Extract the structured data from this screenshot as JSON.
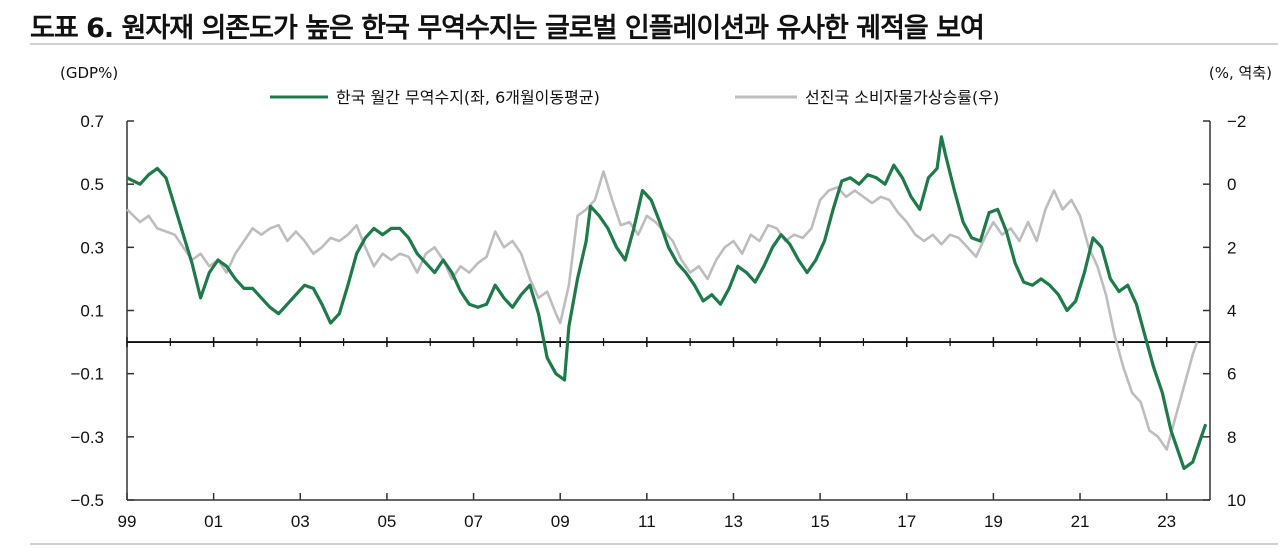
{
  "title": "도표 6. 원자재 의존도가 높은 한국 무역수지는 글로벌 인플레이션과 유사한 궤적을 보여",
  "chart_data": {
    "type": "line",
    "left_unit": "(GDP%)",
    "right_unit": "(%, 역축)",
    "x_ticks": [
      "99",
      "01",
      "03",
      "05",
      "07",
      "09",
      "11",
      "13",
      "15",
      "17",
      "19",
      "21",
      "23"
    ],
    "y_left": {
      "range": [
        -0.5,
        0.7
      ],
      "ticks": [
        "0.7",
        "0.5",
        "0.3",
        "0.1",
        "−0.1",
        "−0.3",
        "−0.5"
      ]
    },
    "y_right": {
      "range": [
        -2,
        10
      ],
      "inverted": true,
      "ticks": [
        "−2",
        "0",
        "2",
        "4",
        "6",
        "8",
        "10"
      ]
    },
    "legend_position": "top-center",
    "grid": false,
    "colors": {
      "korea": "#1f7a4a",
      "advanced": "#bdbdbd",
      "frame": "#333333"
    },
    "series": [
      {
        "name": "한국 월간 무역수지(좌, 6개월이동평균)",
        "axis": "left",
        "points": [
          [
            1999.0,
            0.52
          ],
          [
            1999.3,
            0.5
          ],
          [
            1999.5,
            0.53
          ],
          [
            1999.7,
            0.55
          ],
          [
            1999.9,
            0.52
          ],
          [
            2000.1,
            0.43
          ],
          [
            2000.3,
            0.34
          ],
          [
            2000.5,
            0.25
          ],
          [
            2000.7,
            0.14
          ],
          [
            2000.9,
            0.22
          ],
          [
            2001.1,
            0.26
          ],
          [
            2001.3,
            0.24
          ],
          [
            2001.5,
            0.2
          ],
          [
            2001.7,
            0.17
          ],
          [
            2001.9,
            0.17
          ],
          [
            2002.1,
            0.14
          ],
          [
            2002.3,
            0.11
          ],
          [
            2002.5,
            0.09
          ],
          [
            2002.7,
            0.12
          ],
          [
            2002.9,
            0.15
          ],
          [
            2003.1,
            0.18
          ],
          [
            2003.3,
            0.17
          ],
          [
            2003.5,
            0.12
          ],
          [
            2003.7,
            0.06
          ],
          [
            2003.9,
            0.09
          ],
          [
            2004.1,
            0.18
          ],
          [
            2004.3,
            0.28
          ],
          [
            2004.5,
            0.33
          ],
          [
            2004.7,
            0.36
          ],
          [
            2004.9,
            0.34
          ],
          [
            2005.1,
            0.36
          ],
          [
            2005.3,
            0.36
          ],
          [
            2005.5,
            0.33
          ],
          [
            2005.7,
            0.28
          ],
          [
            2005.9,
            0.25
          ],
          [
            2006.1,
            0.22
          ],
          [
            2006.3,
            0.26
          ],
          [
            2006.5,
            0.22
          ],
          [
            2006.7,
            0.16
          ],
          [
            2006.9,
            0.12
          ],
          [
            2007.1,
            0.11
          ],
          [
            2007.3,
            0.12
          ],
          [
            2007.5,
            0.18
          ],
          [
            2007.7,
            0.14
          ],
          [
            2007.9,
            0.11
          ],
          [
            2008.1,
            0.15
          ],
          [
            2008.3,
            0.18
          ],
          [
            2008.5,
            0.09
          ],
          [
            2008.7,
            -0.05
          ],
          [
            2008.9,
            -0.1
          ],
          [
            2009.1,
            -0.12
          ],
          [
            2009.2,
            0.05
          ],
          [
            2009.4,
            0.2
          ],
          [
            2009.6,
            0.32
          ],
          [
            2009.7,
            0.43
          ],
          [
            2009.9,
            0.4
          ],
          [
            2010.1,
            0.36
          ],
          [
            2010.3,
            0.3
          ],
          [
            2010.5,
            0.26
          ],
          [
            2010.7,
            0.36
          ],
          [
            2010.9,
            0.48
          ],
          [
            2011.1,
            0.45
          ],
          [
            2011.3,
            0.38
          ],
          [
            2011.5,
            0.3
          ],
          [
            2011.7,
            0.25
          ],
          [
            2011.9,
            0.22
          ],
          [
            2012.1,
            0.18
          ],
          [
            2012.3,
            0.13
          ],
          [
            2012.5,
            0.15
          ],
          [
            2012.7,
            0.12
          ],
          [
            2012.9,
            0.17
          ],
          [
            2013.1,
            0.24
          ],
          [
            2013.3,
            0.22
          ],
          [
            2013.5,
            0.19
          ],
          [
            2013.7,
            0.24
          ],
          [
            2013.9,
            0.3
          ],
          [
            2014.1,
            0.34
          ],
          [
            2014.3,
            0.31
          ],
          [
            2014.5,
            0.26
          ],
          [
            2014.7,
            0.22
          ],
          [
            2014.9,
            0.26
          ],
          [
            2015.1,
            0.32
          ],
          [
            2015.3,
            0.42
          ],
          [
            2015.5,
            0.51
          ],
          [
            2015.7,
            0.52
          ],
          [
            2015.9,
            0.5
          ],
          [
            2016.1,
            0.53
          ],
          [
            2016.3,
            0.52
          ],
          [
            2016.5,
            0.5
          ],
          [
            2016.7,
            0.56
          ],
          [
            2016.9,
            0.52
          ],
          [
            2017.1,
            0.46
          ],
          [
            2017.3,
            0.42
          ],
          [
            2017.5,
            0.52
          ],
          [
            2017.7,
            0.55
          ],
          [
            2017.8,
            0.65
          ],
          [
            2017.9,
            0.59
          ],
          [
            2018.1,
            0.48
          ],
          [
            2018.3,
            0.38
          ],
          [
            2018.5,
            0.33
          ],
          [
            2018.7,
            0.32
          ],
          [
            2018.9,
            0.41
          ],
          [
            2019.1,
            0.42
          ],
          [
            2019.3,
            0.35
          ],
          [
            2019.5,
            0.25
          ],
          [
            2019.7,
            0.19
          ],
          [
            2019.9,
            0.18
          ],
          [
            2020.1,
            0.2
          ],
          [
            2020.3,
            0.18
          ],
          [
            2020.5,
            0.15
          ],
          [
            2020.7,
            0.1
          ],
          [
            2020.9,
            0.13
          ],
          [
            2021.1,
            0.22
          ],
          [
            2021.3,
            0.33
          ],
          [
            2021.5,
            0.3
          ],
          [
            2021.7,
            0.2
          ],
          [
            2021.9,
            0.16
          ],
          [
            2022.1,
            0.18
          ],
          [
            2022.3,
            0.12
          ],
          [
            2022.5,
            0.02
          ],
          [
            2022.7,
            -0.08
          ],
          [
            2022.9,
            -0.16
          ],
          [
            2023.1,
            -0.28
          ],
          [
            2023.3,
            -0.36
          ],
          [
            2023.4,
            -0.4
          ],
          [
            2023.6,
            -0.38
          ],
          [
            2023.8,
            -0.3
          ],
          [
            2023.9,
            -0.26
          ]
        ]
      },
      {
        "name": "선진국 소비자물가상승률(우)",
        "axis": "right",
        "points": [
          [
            1999.0,
            0.8
          ],
          [
            1999.3,
            1.2
          ],
          [
            1999.5,
            1.0
          ],
          [
            1999.7,
            1.4
          ],
          [
            1999.9,
            1.5
          ],
          [
            2000.1,
            1.6
          ],
          [
            2000.3,
            2.0
          ],
          [
            2000.5,
            2.4
          ],
          [
            2000.7,
            2.2
          ],
          [
            2000.9,
            2.6
          ],
          [
            2001.1,
            2.4
          ],
          [
            2001.3,
            2.8
          ],
          [
            2001.5,
            2.2
          ],
          [
            2001.7,
            1.8
          ],
          [
            2001.9,
            1.4
          ],
          [
            2002.1,
            1.6
          ],
          [
            2002.3,
            1.4
          ],
          [
            2002.5,
            1.3
          ],
          [
            2002.7,
            1.8
          ],
          [
            2002.9,
            1.5
          ],
          [
            2003.1,
            1.8
          ],
          [
            2003.3,
            2.2
          ],
          [
            2003.5,
            2.0
          ],
          [
            2003.7,
            1.7
          ],
          [
            2003.9,
            1.8
          ],
          [
            2004.1,
            1.6
          ],
          [
            2004.3,
            1.3
          ],
          [
            2004.5,
            2.0
          ],
          [
            2004.7,
            2.6
          ],
          [
            2004.9,
            2.2
          ],
          [
            2005.1,
            2.4
          ],
          [
            2005.3,
            2.2
          ],
          [
            2005.5,
            2.3
          ],
          [
            2005.7,
            2.8
          ],
          [
            2005.9,
            2.2
          ],
          [
            2006.1,
            2.0
          ],
          [
            2006.3,
            2.4
          ],
          [
            2006.5,
            3.0
          ],
          [
            2006.7,
            2.6
          ],
          [
            2006.9,
            2.8
          ],
          [
            2007.1,
            2.5
          ],
          [
            2007.3,
            2.3
          ],
          [
            2007.5,
            1.5
          ],
          [
            2007.7,
            2.0
          ],
          [
            2007.9,
            1.8
          ],
          [
            2008.1,
            2.2
          ],
          [
            2008.3,
            3.0
          ],
          [
            2008.5,
            3.6
          ],
          [
            2008.7,
            3.4
          ],
          [
            2008.9,
            4.1
          ],
          [
            2009.0,
            4.4
          ],
          [
            2009.2,
            3.2
          ],
          [
            2009.4,
            1.0
          ],
          [
            2009.6,
            0.8
          ],
          [
            2009.8,
            0.5
          ],
          [
            2010.0,
            -0.4
          ],
          [
            2010.2,
            0.5
          ],
          [
            2010.4,
            1.3
          ],
          [
            2010.6,
            1.2
          ],
          [
            2010.8,
            1.6
          ],
          [
            2011.0,
            1.0
          ],
          [
            2011.2,
            1.2
          ],
          [
            2011.4,
            1.5
          ],
          [
            2011.6,
            1.8
          ],
          [
            2011.8,
            2.4
          ],
          [
            2012.0,
            2.8
          ],
          [
            2012.2,
            2.6
          ],
          [
            2012.4,
            3.0
          ],
          [
            2012.6,
            2.4
          ],
          [
            2012.8,
            2.0
          ],
          [
            2013.0,
            1.8
          ],
          [
            2013.2,
            2.2
          ],
          [
            2013.4,
            1.6
          ],
          [
            2013.6,
            1.8
          ],
          [
            2013.8,
            1.3
          ],
          [
            2014.0,
            1.4
          ],
          [
            2014.2,
            1.8
          ],
          [
            2014.4,
            1.6
          ],
          [
            2014.6,
            1.7
          ],
          [
            2014.8,
            1.4
          ],
          [
            2015.0,
            0.5
          ],
          [
            2015.2,
            0.2
          ],
          [
            2015.4,
            0.1
          ],
          [
            2015.6,
            0.4
          ],
          [
            2015.8,
            0.2
          ],
          [
            2016.0,
            0.4
          ],
          [
            2016.2,
            0.6
          ],
          [
            2016.4,
            0.4
          ],
          [
            2016.6,
            0.5
          ],
          [
            2016.8,
            0.9
          ],
          [
            2017.0,
            1.2
          ],
          [
            2017.2,
            1.6
          ],
          [
            2017.4,
            1.8
          ],
          [
            2017.6,
            1.6
          ],
          [
            2017.8,
            1.9
          ],
          [
            2018.0,
            1.6
          ],
          [
            2018.2,
            1.7
          ],
          [
            2018.4,
            2.0
          ],
          [
            2018.6,
            2.3
          ],
          [
            2018.8,
            1.7
          ],
          [
            2019.0,
            1.2
          ],
          [
            2019.2,
            1.6
          ],
          [
            2019.4,
            1.4
          ],
          [
            2019.6,
            1.8
          ],
          [
            2019.8,
            1.2
          ],
          [
            2020.0,
            1.8
          ],
          [
            2020.2,
            0.8
          ],
          [
            2020.4,
            0.2
          ],
          [
            2020.6,
            0.8
          ],
          [
            2020.8,
            0.5
          ],
          [
            2021.0,
            1.0
          ],
          [
            2021.2,
            2.0
          ],
          [
            2021.4,
            2.6
          ],
          [
            2021.6,
            3.5
          ],
          [
            2021.8,
            4.8
          ],
          [
            2022.0,
            5.8
          ],
          [
            2022.2,
            6.6
          ],
          [
            2022.4,
            6.9
          ],
          [
            2022.6,
            7.8
          ],
          [
            2022.8,
            8.0
          ],
          [
            2023.0,
            8.4
          ],
          [
            2023.2,
            7.4
          ],
          [
            2023.4,
            6.4
          ],
          [
            2023.6,
            5.4
          ],
          [
            2023.7,
            5.0
          ]
        ]
      }
    ]
  }
}
